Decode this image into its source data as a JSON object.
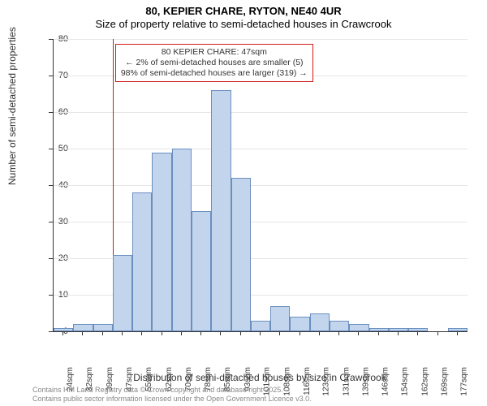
{
  "title_main": "80, KEPIER CHARE, RYTON, NE40 4UR",
  "title_sub": "Size of property relative to semi-detached houses in Crawcrook",
  "chart": {
    "type": "histogram",
    "y_axis_label": "Number of semi-detached properties",
    "x_axis_label": "Distribution of semi-detached houses by size in Crawcrook",
    "ylim": [
      0,
      80
    ],
    "ytick_step": 10,
    "yticks": [
      0,
      10,
      20,
      30,
      40,
      50,
      60,
      70,
      80
    ],
    "x_labels": [
      "24sqm",
      "32sqm",
      "39sqm",
      "47sqm",
      "55sqm",
      "62sqm",
      "70sqm",
      "78sqm",
      "85sqm",
      "93sqm",
      "101sqm",
      "108sqm",
      "116sqm",
      "123sqm",
      "131sqm",
      "139sqm",
      "146sqm",
      "154sqm",
      "162sqm",
      "169sqm",
      "177sqm"
    ],
    "values": [
      1,
      2,
      2,
      21,
      38,
      49,
      50,
      33,
      66,
      42,
      3,
      7,
      4,
      5,
      3,
      2,
      1,
      1,
      1,
      0,
      1
    ],
    "bar_fill": "#c3d5ec",
    "bar_border": "#6a8fbf",
    "background_color": "#ffffff",
    "grid_color": "#e6e6e6",
    "axis_color": "#333333",
    "title_fontsize": 13,
    "label_fontsize": 12,
    "tick_fontsize": 11
  },
  "marker": {
    "bin_index": 3,
    "line_color": "#d11a1a",
    "box": {
      "line1": "80 KEPIER CHARE: 47sqm",
      "line2": "← 2% of semi-detached houses are smaller (5)",
      "line3": "98% of semi-detached houses are larger (319) →",
      "border_color": "#d11a1a",
      "background": "#ffffff",
      "fontsize": 10.5
    }
  },
  "footer": {
    "line1": "Contains HM Land Registry data © Crown copyright and database right 2025.",
    "line2": "Contains public sector information licensed under the Open Government Licence v3.0.",
    "color": "#888888",
    "fontsize": 9
  }
}
